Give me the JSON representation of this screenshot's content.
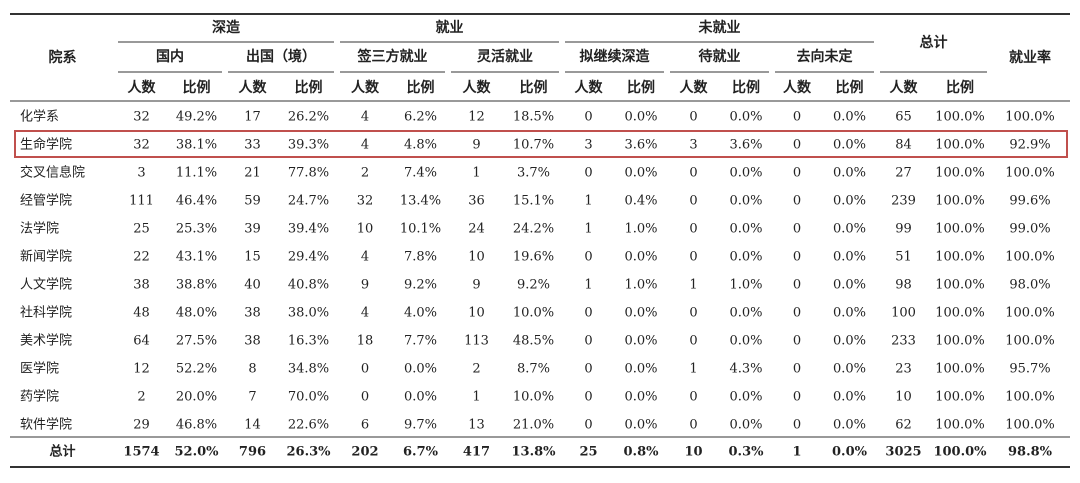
{
  "table": {
    "header": {
      "first": "院系",
      "groups": [
        {
          "label": "深造",
          "subs": [
            {
              "label": "国内",
              "columns": [
                "人数",
                "比例"
              ]
            },
            {
              "label": "出国（境）",
              "columns": [
                "人数",
                "比例"
              ]
            }
          ]
        },
        {
          "label": "就业",
          "subs": [
            {
              "label": "签三方就业",
              "columns": [
                "人数",
                "比例"
              ]
            },
            {
              "label": "灵活就业",
              "columns": [
                "人数",
                "比例"
              ]
            }
          ]
        },
        {
          "label": "未就业",
          "subs": [
            {
              "label": "拟继续深造",
              "columns": [
                "人数",
                "比例"
              ]
            },
            {
              "label": "待就业",
              "columns": [
                "人数",
                "比例"
              ]
            },
            {
              "label": "去向未定",
              "columns": [
                "人数",
                "比例"
              ]
            }
          ]
        }
      ],
      "total": {
        "label": "总计",
        "columns": [
          "人数",
          "比例"
        ]
      },
      "rate": "就业率"
    },
    "rows": [
      [
        "化学系",
        32,
        "49.2%",
        17,
        "26.2%",
        4,
        "6.2%",
        12,
        "18.5%",
        0,
        "0.0%",
        0,
        "0.0%",
        0,
        "0.0%",
        65,
        "100.0%",
        "100.0%"
      ],
      [
        "生命学院",
        32,
        "38.1%",
        33,
        "39.3%",
        4,
        "4.8%",
        9,
        "10.7%",
        3,
        "3.6%",
        3,
        "3.6%",
        0,
        "0.0%",
        84,
        "100.0%",
        "92.9%"
      ],
      [
        "交叉信息院",
        3,
        "11.1%",
        21,
        "77.8%",
        2,
        "7.4%",
        1,
        "3.7%",
        0,
        "0.0%",
        0,
        "0.0%",
        0,
        "0.0%",
        27,
        "100.0%",
        "100.0%"
      ],
      [
        "经管学院",
        111,
        "46.4%",
        59,
        "24.7%",
        32,
        "13.4%",
        36,
        "15.1%",
        1,
        "0.4%",
        0,
        "0.0%",
        0,
        "0.0%",
        239,
        "100.0%",
        "99.6%"
      ],
      [
        "法学院",
        25,
        "25.3%",
        39,
        "39.4%",
        10,
        "10.1%",
        24,
        "24.2%",
        1,
        "1.0%",
        0,
        "0.0%",
        0,
        "0.0%",
        99,
        "100.0%",
        "99.0%"
      ],
      [
        "新闻学院",
        22,
        "43.1%",
        15,
        "29.4%",
        4,
        "7.8%",
        10,
        "19.6%",
        0,
        "0.0%",
        0,
        "0.0%",
        0,
        "0.0%",
        51,
        "100.0%",
        "100.0%"
      ],
      [
        "人文学院",
        38,
        "38.8%",
        40,
        "40.8%",
        9,
        "9.2%",
        9,
        "9.2%",
        1,
        "1.0%",
        1,
        "1.0%",
        0,
        "0.0%",
        98,
        "100.0%",
        "98.0%"
      ],
      [
        "社科学院",
        48,
        "48.0%",
        38,
        "38.0%",
        4,
        "4.0%",
        10,
        "10.0%",
        0,
        "0.0%",
        0,
        "0.0%",
        0,
        "0.0%",
        100,
        "100.0%",
        "100.0%"
      ],
      [
        "美术学院",
        64,
        "27.5%",
        38,
        "16.3%",
        18,
        "7.7%",
        113,
        "48.5%",
        0,
        "0.0%",
        0,
        "0.0%",
        0,
        "0.0%",
        233,
        "100.0%",
        "100.0%"
      ],
      [
        "医学院",
        12,
        "52.2%",
        8,
        "34.8%",
        0,
        "0.0%",
        2,
        "8.7%",
        0,
        "0.0%",
        1,
        "4.3%",
        0,
        "0.0%",
        23,
        "100.0%",
        "95.7%"
      ],
      [
        "药学院",
        2,
        "20.0%",
        7,
        "70.0%",
        0,
        "0.0%",
        1,
        "10.0%",
        0,
        "0.0%",
        0,
        "0.0%",
        0,
        "0.0%",
        10,
        "100.0%",
        "100.0%"
      ],
      [
        "软件学院",
        29,
        "46.8%",
        14,
        "22.6%",
        6,
        "9.7%",
        13,
        "21.0%",
        0,
        "0.0%",
        0,
        "0.0%",
        0,
        "0.0%",
        62,
        "100.0%",
        "100.0%"
      ]
    ],
    "total_row": [
      "总计",
      1574,
      "52.0%",
      796,
      "26.3%",
      202,
      "6.7%",
      417,
      "13.8%",
      25,
      "0.8%",
      10,
      "0.3%",
      1,
      "0.0%",
      3025,
      "100.0%",
      "98.8%"
    ]
  }
}
